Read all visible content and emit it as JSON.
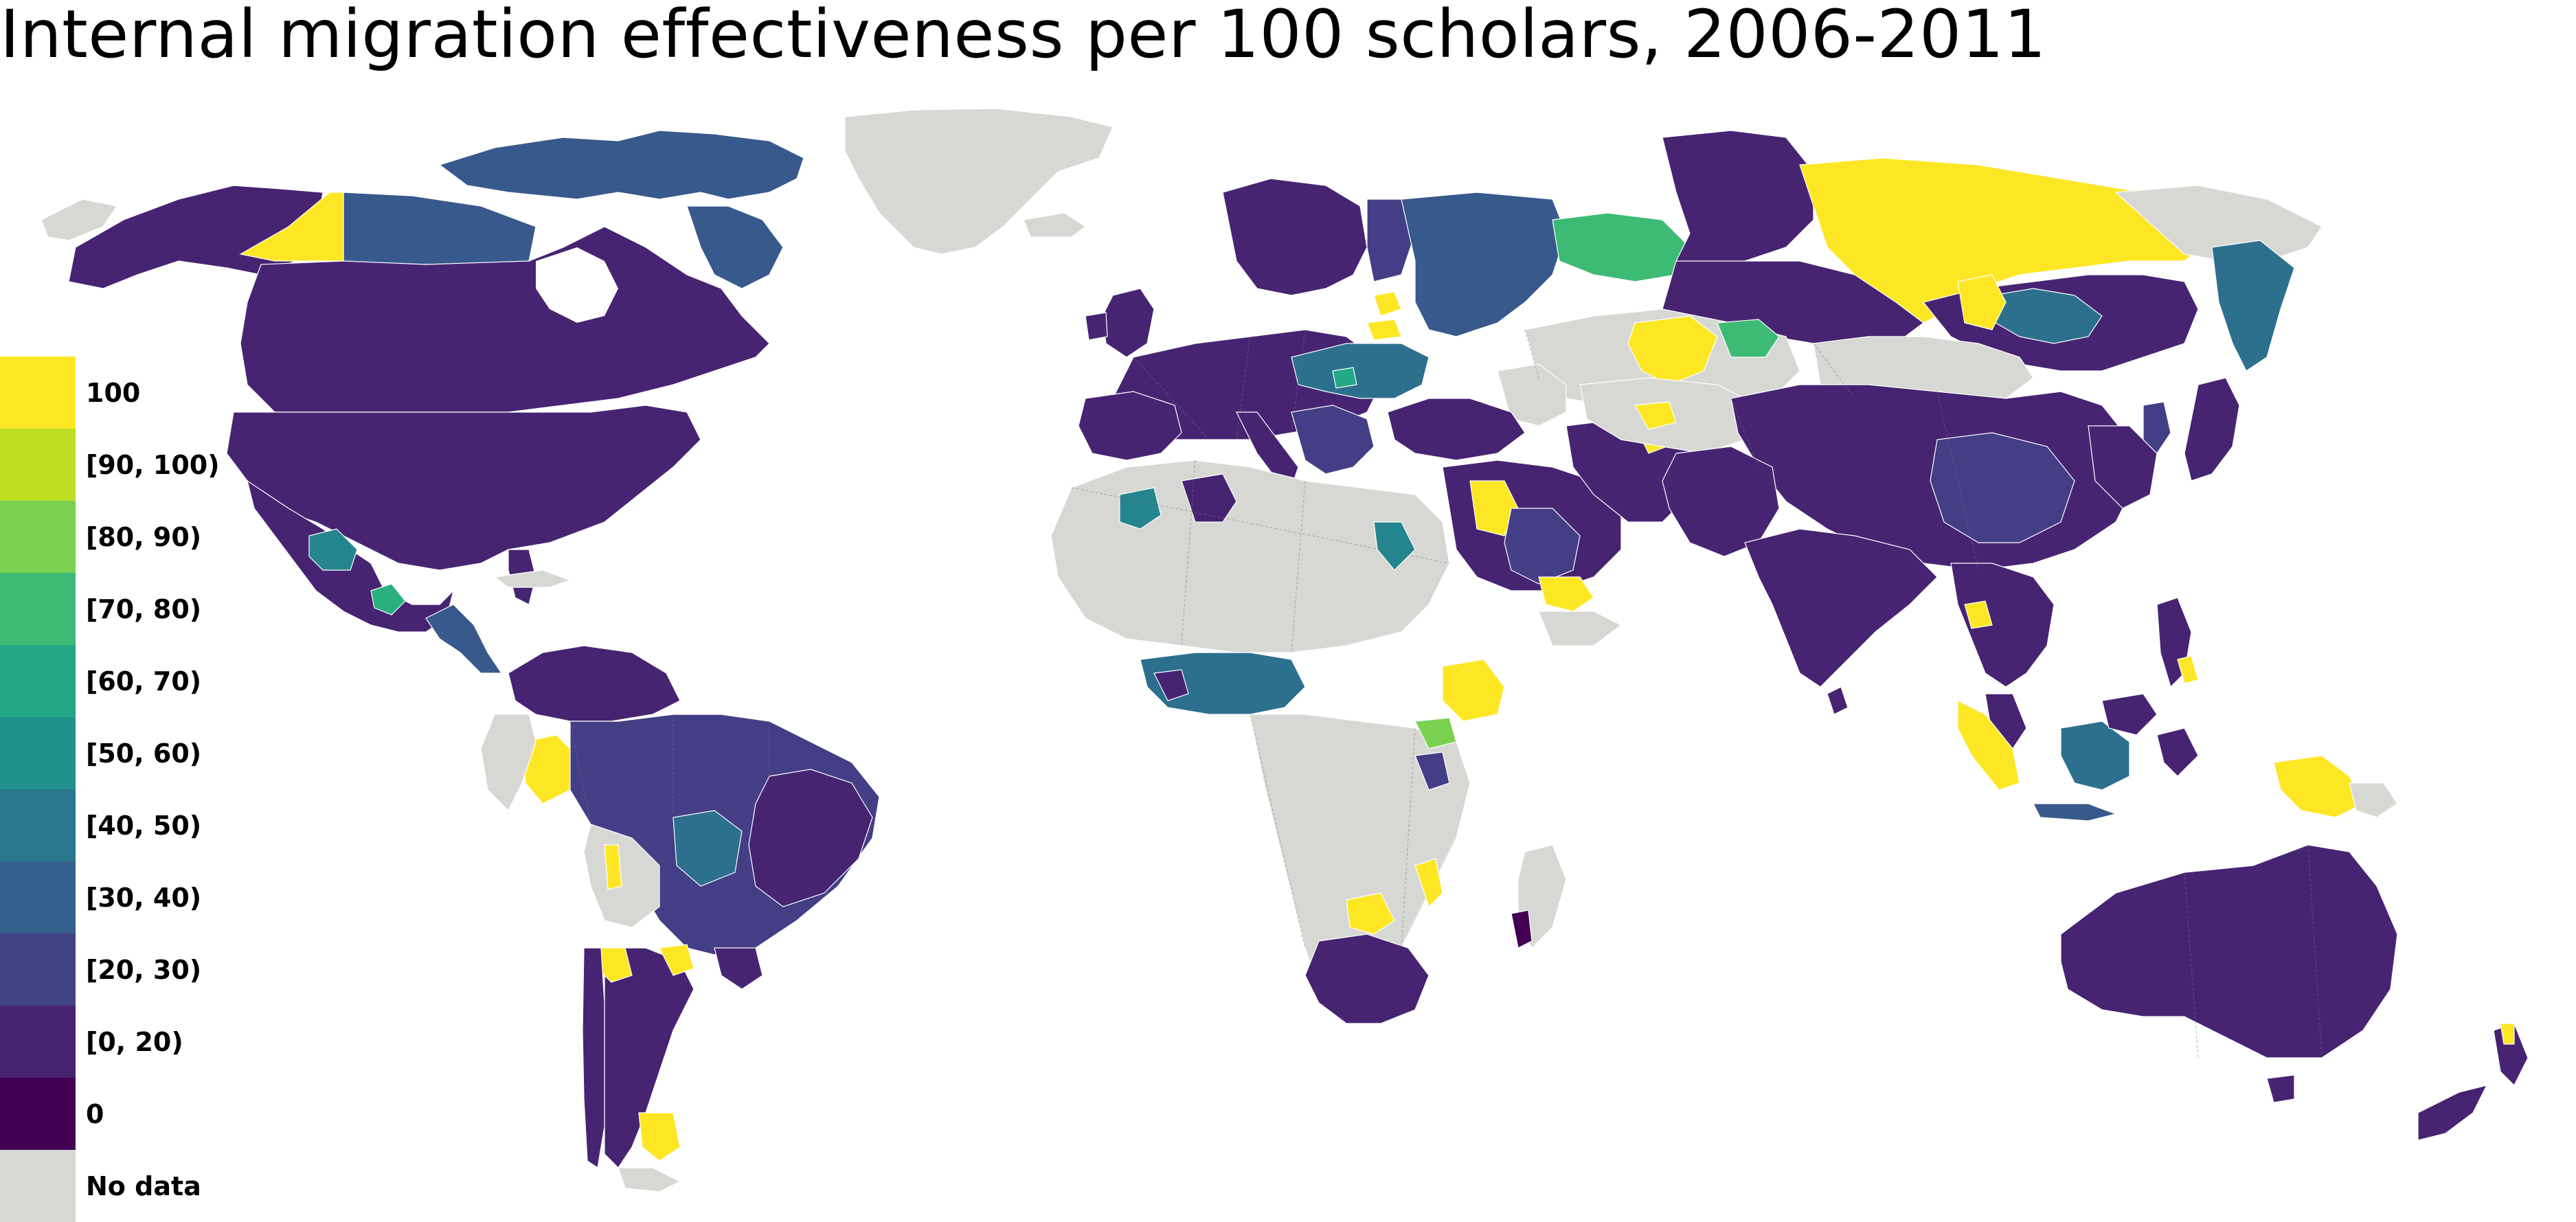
{
  "title": "Internal migration effectiveness per 100 scholars, 2006-2011",
  "colors": {
    "no_data": "#d7d8d4",
    "c0": "#440154",
    "c0_20": "#482173",
    "c20_30": "#433e85",
    "c30_40": "#38598c",
    "c40_50": "#2d708e",
    "c50_60": "#25858e",
    "c60_70": "#1e9b8a",
    "c70_80": "#2ab07f",
    "c80_90": "#52c569",
    "c90_100": "#a5db36",
    "c100": "#fde725"
  },
  "legend": [
    {
      "label": "100",
      "color": "#fde725"
    },
    {
      "label": "[90, 100)",
      "color": "#bede21"
    },
    {
      "label": "[80, 90)",
      "color": "#7ad151"
    },
    {
      "label": "[70, 80)",
      "color": "#3dbb74"
    },
    {
      "label": "[60, 70)",
      "color": "#22a884"
    },
    {
      "label": "[50, 60)",
      "color": "#21918c"
    },
    {
      "label": "[40, 50)",
      "color": "#2a788e"
    },
    {
      "label": "[30, 40)",
      "color": "#355f8d"
    },
    {
      "label": "[20, 30)",
      "color": "#414487"
    },
    {
      "label": "[0, 20)",
      "color": "#472472"
    },
    {
      "label": "0",
      "color": "#440154"
    },
    {
      "label": "No data",
      "color": "#d7d8d4"
    }
  ]
}
